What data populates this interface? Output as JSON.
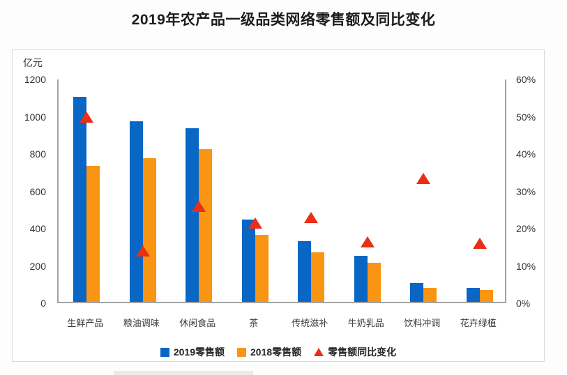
{
  "title": "2019年农产品一级品类网络零售额及同比变化",
  "chart_data": {
    "type": "bar",
    "subtype": "grouped bars with scatter triangle markers on secondary axis",
    "left_axis_unit": "亿元",
    "left_axis": {
      "min": 0,
      "max": 1200,
      "step": 200,
      "ticks": [
        "0",
        "200",
        "400",
        "600",
        "800",
        "1000",
        "1200"
      ]
    },
    "right_axis": {
      "min": 0,
      "max": 60,
      "step": 10,
      "ticks": [
        "0%",
        "10%",
        "20%",
        "30%",
        "40%",
        "50%",
        "60%"
      ]
    },
    "categories": [
      "生鲜产品",
      "粮油调味",
      "休闲食品",
      "茶",
      "传统滋补",
      "牛奶乳品",
      "饮料冲调",
      "花卉绿植"
    ],
    "series": [
      {
        "name": "2019零售额",
        "type": "bar",
        "axis": "left",
        "color": "#0866c4",
        "values": [
          1100,
          970,
          930,
          440,
          325,
          245,
          100,
          75
        ]
      },
      {
        "name": "2018零售额",
        "type": "bar",
        "axis": "left",
        "color": "#fa9514",
        "values": [
          730,
          770,
          820,
          360,
          265,
          210,
          75,
          62
        ]
      },
      {
        "name": "零售额同比变化",
        "type": "scatter-triangle",
        "axis": "right",
        "color": "#ea2f15",
        "values_pct": [
          50,
          14,
          26,
          21.5,
          23,
          16.5,
          33.5,
          16
        ]
      }
    ],
    "legend_position": "bottom",
    "grid": "off"
  },
  "colors": {
    "bar_2019": "#0866c4",
    "bar_2018": "#fa9514",
    "growth_marker": "#ea2f15",
    "axis_line": "#a3a3a3",
    "panel_border": "#d9d9d9",
    "title_text": "#1c1c1c"
  }
}
